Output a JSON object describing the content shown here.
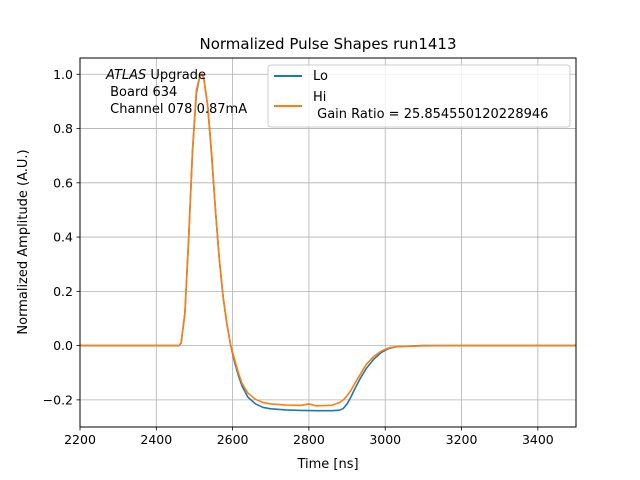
{
  "chart_data": {
    "type": "line",
    "title": "Normalized Pulse Shapes run1413",
    "xlabel": "Time [ns]",
    "ylabel": "Normalized Amplitude (A.U.)",
    "xlim": [
      2200,
      3500
    ],
    "ylim": [
      -0.3,
      1.06
    ],
    "xticks": [
      2200,
      2400,
      2600,
      2800,
      3000,
      3200,
      3400
    ],
    "xtick_labels": [
      "2200",
      "2400",
      "2600",
      "2800",
      "3000",
      "3200",
      "3400"
    ],
    "yticks": [
      -0.2,
      0.0,
      0.2,
      0.4,
      0.6,
      0.8,
      1.0
    ],
    "ytick_labels": [
      "−0.2",
      "0.0",
      "0.2",
      "0.4",
      "0.6",
      "0.8",
      "1.0"
    ],
    "grid": true,
    "legend_position": "top-right",
    "annotation": {
      "line1_italic": "ATLAS",
      "line1_rest": " Upgrade",
      "line2": " Board 634",
      "line3": " Channel 078 0.87mA"
    },
    "series": [
      {
        "name": "Lo",
        "legend_label": "Lo",
        "color": "#1f77b4",
        "x": [
          2200,
          2300,
          2400,
          2460,
          2465,
          2475,
          2485,
          2495,
          2505,
          2515,
          2520,
          2525,
          2535,
          2545,
          2555,
          2565,
          2575,
          2585,
          2595,
          2605,
          2615,
          2625,
          2640,
          2660,
          2680,
          2700,
          2740,
          2780,
          2820,
          2860,
          2880,
          2890,
          2900,
          2910,
          2920,
          2935,
          2950,
          2970,
          2990,
          3010,
          3030,
          3060,
          3100,
          3200,
          3300,
          3400,
          3500
        ],
        "y": [
          0.0,
          0.0,
          0.0,
          0.0,
          0.01,
          0.12,
          0.4,
          0.72,
          0.93,
          1.0,
          1.0,
          0.98,
          0.88,
          0.7,
          0.5,
          0.32,
          0.18,
          0.08,
          0.0,
          -0.06,
          -0.11,
          -0.15,
          -0.19,
          -0.215,
          -0.228,
          -0.233,
          -0.237,
          -0.239,
          -0.24,
          -0.24,
          -0.238,
          -0.232,
          -0.215,
          -0.19,
          -0.16,
          -0.12,
          -0.085,
          -0.05,
          -0.025,
          -0.01,
          -0.004,
          -0.002,
          0.0,
          0.0,
          0.0,
          0.0,
          0.0
        ]
      },
      {
        "name": "Hi",
        "legend_label": "Hi",
        "legend_sublabel": " Gain Ratio = 25.854550120228946",
        "color": "#ff7f0e",
        "x": [
          2200,
          2300,
          2400,
          2460,
          2465,
          2475,
          2485,
          2495,
          2505,
          2515,
          2520,
          2525,
          2535,
          2545,
          2555,
          2565,
          2575,
          2585,
          2595,
          2605,
          2615,
          2625,
          2640,
          2660,
          2680,
          2700,
          2740,
          2780,
          2800,
          2820,
          2860,
          2880,
          2890,
          2900,
          2910,
          2920,
          2935,
          2950,
          2970,
          2990,
          3010,
          3030,
          3060,
          3100,
          3200,
          3300,
          3400,
          3500
        ],
        "y": [
          0.0,
          0.0,
          0.0,
          0.0,
          0.01,
          0.12,
          0.4,
          0.72,
          0.94,
          1.0,
          1.0,
          0.98,
          0.88,
          0.71,
          0.5,
          0.32,
          0.18,
          0.08,
          0.0,
          -0.05,
          -0.1,
          -0.14,
          -0.175,
          -0.198,
          -0.21,
          -0.215,
          -0.219,
          -0.22,
          -0.215,
          -0.222,
          -0.22,
          -0.21,
          -0.2,
          -0.185,
          -0.165,
          -0.14,
          -0.105,
          -0.07,
          -0.04,
          -0.02,
          -0.008,
          -0.004,
          -0.002,
          -0.001,
          0.0,
          0.0,
          0.0,
          0.0
        ]
      }
    ]
  }
}
